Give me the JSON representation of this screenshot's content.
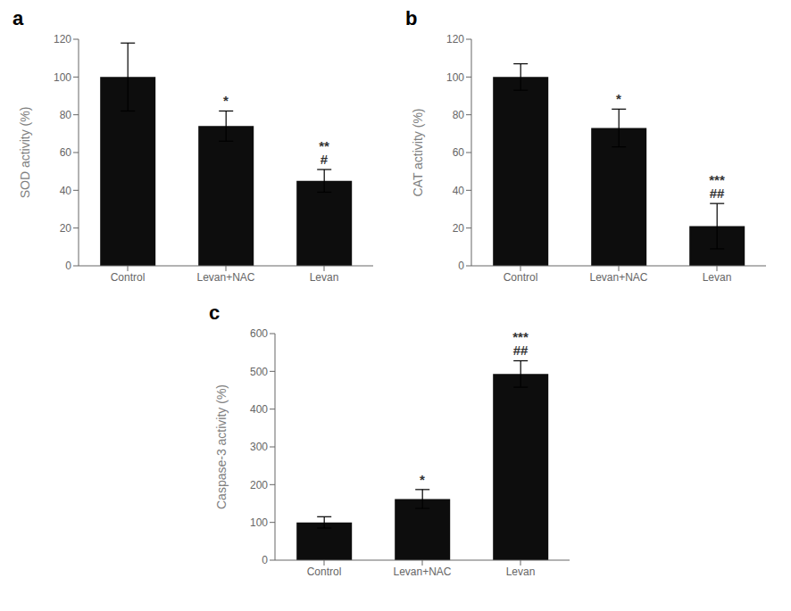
{
  "chart_data": [
    {
      "type": "bar",
      "title": "a",
      "categories": [
        "Control",
        "Levan+NAC",
        "Levan"
      ],
      "values": [
        100,
        74,
        45
      ],
      "errors": [
        18,
        8,
        6
      ],
      "ylabel": "SOD activity (%)",
      "ylim": [
        0,
        120
      ],
      "yticks": [
        0,
        20,
        40,
        60,
        80,
        100,
        120
      ],
      "color": "#0d0d0d",
      "grid": false,
      "annotations": [
        {
          "category": "Levan+NAC",
          "text": "*"
        },
        {
          "category": "Levan",
          "text": "**\n#"
        }
      ]
    },
    {
      "type": "bar",
      "title": "b",
      "categories": [
        "Control",
        "Levan+NAC",
        "Levan"
      ],
      "values": [
        100,
        73,
        21
      ],
      "errors": [
        7,
        10,
        12
      ],
      "ylabel": "CAT activity (%)",
      "ylim": [
        0,
        120
      ],
      "yticks": [
        0,
        20,
        40,
        60,
        80,
        100,
        120
      ],
      "color": "#0d0d0d",
      "grid": false,
      "annotations": [
        {
          "category": "Levan+NAC",
          "text": "*"
        },
        {
          "category": "Levan",
          "text": "***\n##"
        }
      ]
    },
    {
      "type": "bar",
      "title": "c",
      "categories": [
        "Control",
        "Levan+NAC",
        "Levan"
      ],
      "values": [
        100,
        162,
        493
      ],
      "errors": [
        15,
        25,
        35
      ],
      "ylabel": "Caspase-3 activity (%)",
      "ylim": [
        0,
        600
      ],
      "yticks": [
        0,
        100,
        200,
        300,
        400,
        500,
        600
      ],
      "color": "#0d0d0d",
      "grid": false,
      "annotations": [
        {
          "category": "Levan+NAC",
          "text": "*"
        },
        {
          "category": "Levan",
          "text": "***\n##"
        }
      ]
    }
  ]
}
